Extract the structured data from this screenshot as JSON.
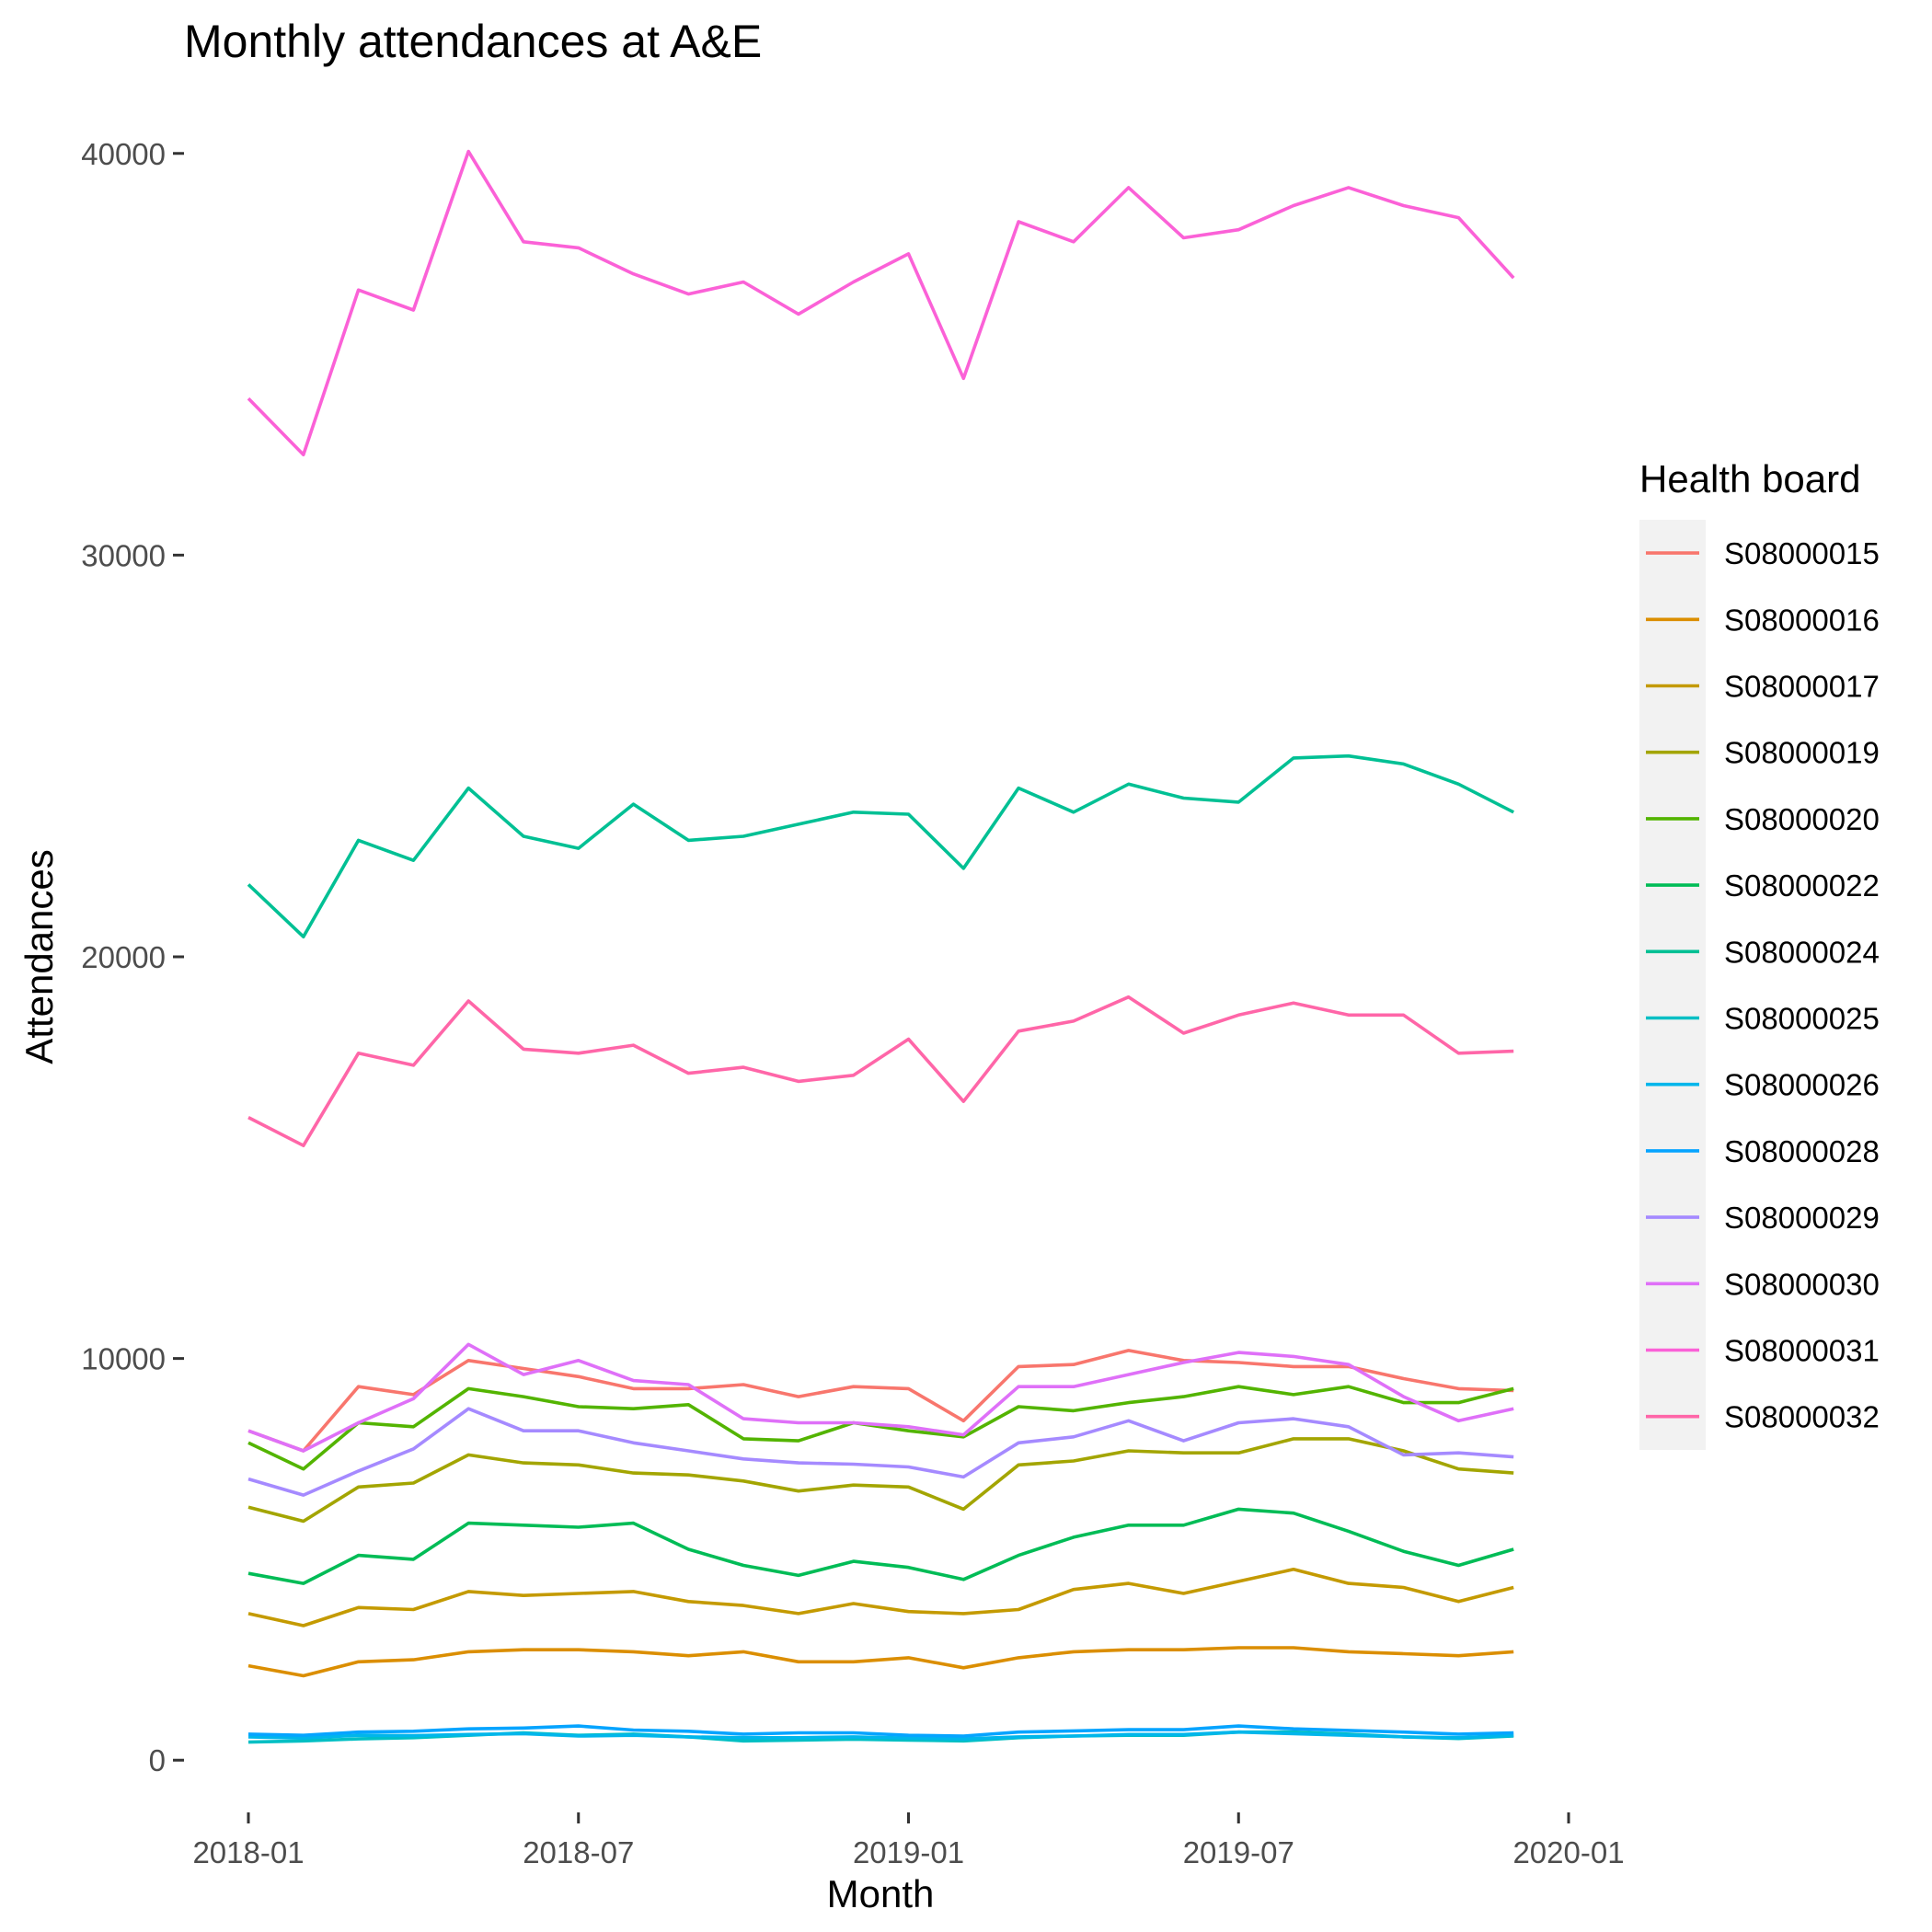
{
  "chart_data": {
    "type": "line",
    "title": "Monthly attendances at A&E",
    "xlabel": "Month",
    "ylabel": "Attendances",
    "x": [
      "2018-01",
      "2018-02",
      "2018-03",
      "2018-04",
      "2018-05",
      "2018-06",
      "2018-07",
      "2018-08",
      "2018-09",
      "2018-10",
      "2018-11",
      "2018-12",
      "2019-01",
      "2019-02",
      "2019-03",
      "2019-04",
      "2019-05",
      "2019-06",
      "2019-07",
      "2019-08",
      "2019-09",
      "2019-10",
      "2019-11",
      "2019-12"
    ],
    "x_ticks": [
      "2018-01",
      "2018-07",
      "2019-01",
      "2019-07",
      "2020-01"
    ],
    "y_ticks": [
      0,
      10000,
      20000,
      30000,
      40000
    ],
    "ylim": [
      -1300,
      41300
    ],
    "grid": false,
    "legend": {
      "title": "Health board",
      "placement": "right"
    },
    "series": [
      {
        "name": "S08000015",
        "color": "#F8766D",
        "values": [
          8200,
          7700,
          9300,
          9100,
          9950,
          9750,
          9550,
          9250,
          9250,
          9350,
          9050,
          9300,
          9250,
          8450,
          9800,
          9850,
          10200,
          9950,
          9900,
          9800,
          9800,
          9500,
          9250,
          9200
        ]
      },
      {
        "name": "S08000016",
        "color": "#DB8E00",
        "values": [
          2350,
          2100,
          2450,
          2500,
          2700,
          2750,
          2750,
          2700,
          2600,
          2700,
          2450,
          2450,
          2550,
          2300,
          2550,
          2700,
          2750,
          2750,
          2800,
          2800,
          2700,
          2650,
          2600,
          2700
        ]
      },
      {
        "name": "S08000017",
        "color": "#C49A00",
        "values": [
          3650,
          3350,
          3800,
          3750,
          4200,
          4100,
          4150,
          4200,
          3950,
          3850,
          3650,
          3900,
          3700,
          3650,
          3750,
          4250,
          4400,
          4150,
          4450,
          4750,
          4400,
          4300,
          3950,
          4300
        ]
      },
      {
        "name": "S08000019",
        "color": "#A3A500",
        "values": [
          6300,
          5950,
          6800,
          6900,
          7600,
          7400,
          7350,
          7150,
          7100,
          6950,
          6700,
          6850,
          6800,
          6250,
          7350,
          7450,
          7700,
          7650,
          7650,
          8000,
          8000,
          7700,
          7250,
          7150
        ]
      },
      {
        "name": "S08000020",
        "color": "#53B400",
        "values": [
          7900,
          7250,
          8400,
          8300,
          9250,
          9050,
          8800,
          8750,
          8850,
          8000,
          7950,
          8400,
          8200,
          8050,
          8800,
          8700,
          8900,
          9050,
          9300,
          9100,
          9300,
          8900,
          8900,
          9250
        ]
      },
      {
        "name": "S08000022",
        "color": "#00BC56",
        "values": [
          4650,
          4400,
          5100,
          5000,
          5900,
          5850,
          5800,
          5900,
          5250,
          4850,
          4600,
          4950,
          4800,
          4500,
          5100,
          5550,
          5850,
          5850,
          6250,
          6150,
          5700,
          5200,
          4850,
          5250
        ]
      },
      {
        "name": "S08000024",
        "color": "#00C094",
        "values": [
          21800,
          20500,
          22900,
          22400,
          24200,
          23000,
          22700,
          23800,
          22900,
          23000,
          23300,
          23600,
          23550,
          22200,
          24200,
          23600,
          24300,
          23950,
          23850,
          24950,
          25000,
          24800,
          24300,
          23600
        ]
      },
      {
        "name": "S08000025",
        "color": "#00BFC4",
        "values": [
          450,
          480,
          530,
          560,
          620,
          680,
          620,
          650,
          580,
          480,
          500,
          520,
          500,
          480,
          560,
          600,
          620,
          620,
          700,
          700,
          650,
          580,
          540,
          600
        ]
      },
      {
        "name": "S08000026",
        "color": "#00B6EB",
        "values": [
          580,
          550,
          620,
          610,
          640,
          660,
          600,
          620,
          580,
          560,
          560,
          580,
          550,
          530,
          580,
          600,
          640,
          640,
          700,
          660,
          620,
          580,
          560,
          620
        ]
      },
      {
        "name": "S08000028",
        "color": "#06A4FF",
        "values": [
          650,
          620,
          700,
          720,
          780,
          800,
          850,
          750,
          720,
          650,
          680,
          680,
          620,
          600,
          700,
          730,
          760,
          760,
          850,
          780,
          740,
          700,
          650,
          680
        ]
      },
      {
        "name": "S08000029",
        "color": "#A58AFF",
        "values": [
          7000,
          6600,
          7200,
          7750,
          8750,
          8200,
          8200,
          7900,
          7700,
          7500,
          7400,
          7370,
          7300,
          7050,
          7900,
          8050,
          8450,
          7950,
          8400,
          8500,
          8300,
          7600,
          7650,
          7550
        ]
      },
      {
        "name": "S08000030",
        "color": "#DF70F8",
        "values": [
          8200,
          7700,
          8400,
          9000,
          10350,
          9600,
          9950,
          9450,
          9350,
          8500,
          8400,
          8400,
          8300,
          8100,
          9300,
          9300,
          9600,
          9900,
          10150,
          10050,
          9850,
          9050,
          8450,
          8750
        ]
      },
      {
        "name": "S08000031",
        "color": "#FB61D7",
        "values": [
          33900,
          32500,
          36600,
          36100,
          40050,
          37800,
          37650,
          37000,
          36500,
          36800,
          36000,
          36800,
          37500,
          34400,
          38300,
          37800,
          39150,
          37900,
          38100,
          38700,
          39150,
          38700,
          38400,
          36900
        ]
      },
      {
        "name": "S08000032",
        "color": "#FF66A8",
        "values": [
          16000,
          15300,
          17600,
          17300,
          18900,
          17700,
          17600,
          17800,
          17100,
          17250,
          16900,
          17050,
          17950,
          16400,
          18150,
          18400,
          19000,
          18100,
          18550,
          18850,
          18550,
          18550,
          17600,
          17650
        ]
      }
    ]
  }
}
